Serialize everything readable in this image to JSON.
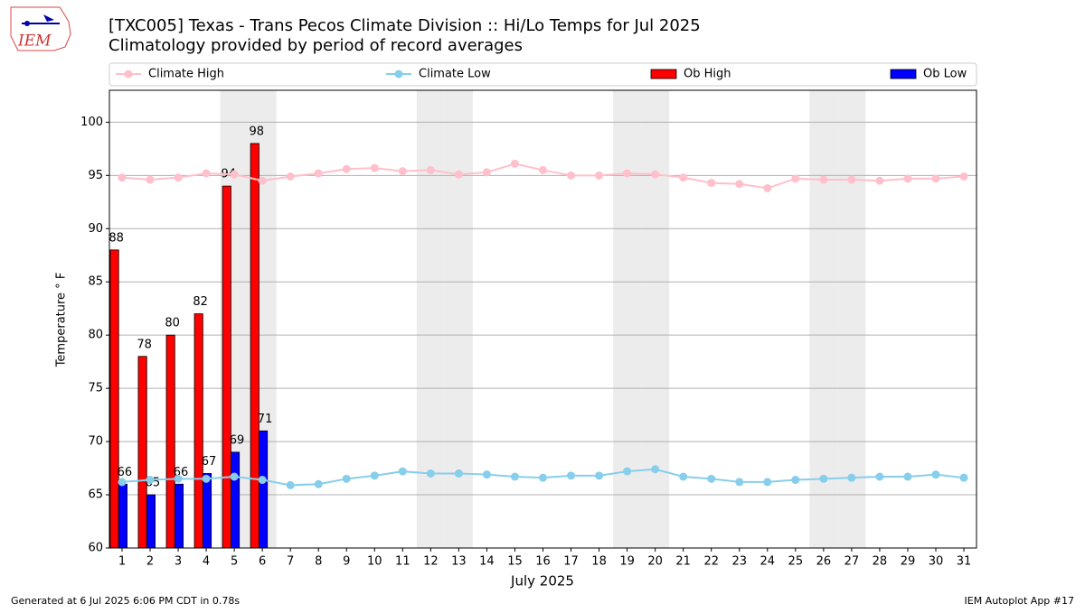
{
  "chart_data": {
    "type": "bar_line",
    "title": "[TXC005] Texas - Trans Pecos Climate Division :: Hi/Lo Temps for Jul 2025",
    "subtitle": "Climatology provided by period of record averages",
    "logo_text": "IEM",
    "xlabel": "July 2025",
    "ylabel": "Temperature ° F",
    "footer_left": "Generated at 6 Jul 2025 6:06 PM CDT in 0.78s",
    "footer_right": "IEM Autoplot App #17",
    "categories": [
      "1",
      "2",
      "3",
      "4",
      "5",
      "6",
      "7",
      "8",
      "9",
      "10",
      "11",
      "12",
      "13",
      "14",
      "15",
      "16",
      "17",
      "18",
      "19",
      "20",
      "21",
      "22",
      "23",
      "24",
      "25",
      "26",
      "27",
      "28",
      "29",
      "30",
      "31"
    ],
    "shaded_categories": [
      4,
      5,
      11,
      12,
      18,
      19,
      25,
      26
    ],
    "ylim": [
      60,
      103
    ],
    "yticks": [
      60,
      65,
      70,
      75,
      80,
      85,
      90,
      95,
      100
    ],
    "grid": true,
    "series": [
      {
        "name": "Climate High",
        "kind": "line",
        "color": "#ffc0cb",
        "values": [
          94.8,
          94.6,
          94.8,
          95.2,
          95.1,
          94.5,
          94.9,
          95.2,
          95.6,
          95.7,
          95.4,
          95.5,
          95.1,
          95.3,
          96.1,
          95.5,
          95.0,
          95.0,
          95.2,
          95.1,
          94.8,
          94.3,
          94.2,
          93.8,
          94.7,
          94.6,
          94.6,
          94.5,
          94.7,
          94.7,
          94.9
        ]
      },
      {
        "name": "Climate Low",
        "kind": "line",
        "color": "#87ceeb",
        "values": [
          66.2,
          66.4,
          66.5,
          66.5,
          66.7,
          66.4,
          65.9,
          66.0,
          66.5,
          66.8,
          67.2,
          67.0,
          67.0,
          66.9,
          66.7,
          66.6,
          66.8,
          66.8,
          67.2,
          67.4,
          66.7,
          66.5,
          66.2,
          66.2,
          66.4,
          66.5,
          66.6,
          66.7,
          66.7,
          66.9,
          66.6
        ]
      },
      {
        "name": "Ob High",
        "kind": "bar",
        "color": "#ff0000",
        "values": [
          88,
          78,
          80,
          82,
          94,
          98,
          null,
          null,
          null,
          null,
          null,
          null,
          null,
          null,
          null,
          null,
          null,
          null,
          null,
          null,
          null,
          null,
          null,
          null,
          null,
          null,
          null,
          null,
          null,
          null,
          null
        ]
      },
      {
        "name": "Ob Low",
        "kind": "bar",
        "color": "#0000ff",
        "values": [
          66,
          65,
          66,
          67,
          69,
          71,
          null,
          null,
          null,
          null,
          null,
          null,
          null,
          null,
          null,
          null,
          null,
          null,
          null,
          null,
          null,
          null,
          null,
          null,
          null,
          null,
          null,
          null,
          null,
          null,
          null
        ]
      }
    ]
  }
}
